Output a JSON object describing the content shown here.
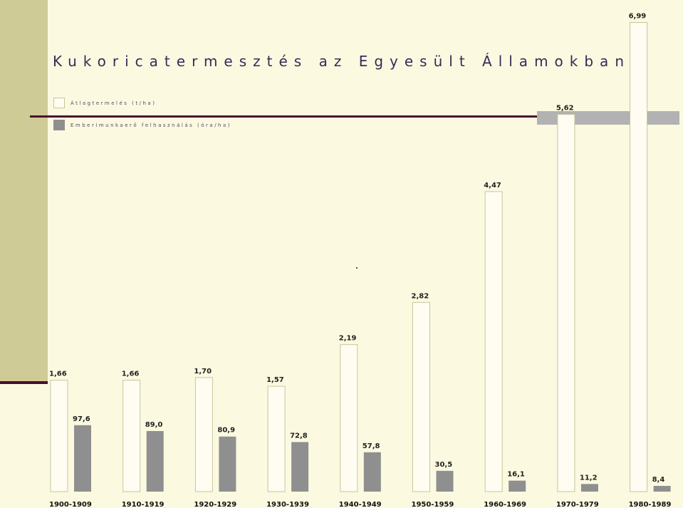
{
  "chart_data": {
    "type": "bar",
    "title": "Kukoricatermesztés az Egyesült Államokban",
    "categories": [
      "1900-1909",
      "1910-1919",
      "1920-1929",
      "1930-1939",
      "1940-1949",
      "1950-1959",
      "1960-1969",
      "1970-1979",
      "1980-1989"
    ],
    "series": [
      {
        "name": "Átlagtermelés (t/ha)",
        "values": [
          1.66,
          1.66,
          1.7,
          1.57,
          2.19,
          2.82,
          4.47,
          5.62,
          6.99
        ],
        "labels": [
          "1,66",
          "1,66",
          "1,70",
          "1,57",
          "2,19",
          "2,82",
          "4,47",
          "5,62",
          "6,99"
        ],
        "color": "#fffdf2",
        "stroke": "#c9c59a"
      },
      {
        "name": "Emberimunkaerő felhasználás (óra/ha)",
        "values": [
          97.6,
          89.0,
          80.9,
          72.8,
          57.8,
          30.5,
          16.1,
          11.2,
          8.4
        ],
        "labels": [
          "97,6",
          "89,0",
          "80,9",
          "72,8",
          "57,8",
          "30,5",
          "16,1",
          "11,2",
          "8,4"
        ],
        "color": "#8f8f8f"
      }
    ],
    "legend": "top-left",
    "grid": false
  },
  "colors": {
    "background": "#fbf9e0",
    "strip": "#cfcb96",
    "accent_line": "#4a0f2c",
    "header_box": "#b2b2b2"
  }
}
